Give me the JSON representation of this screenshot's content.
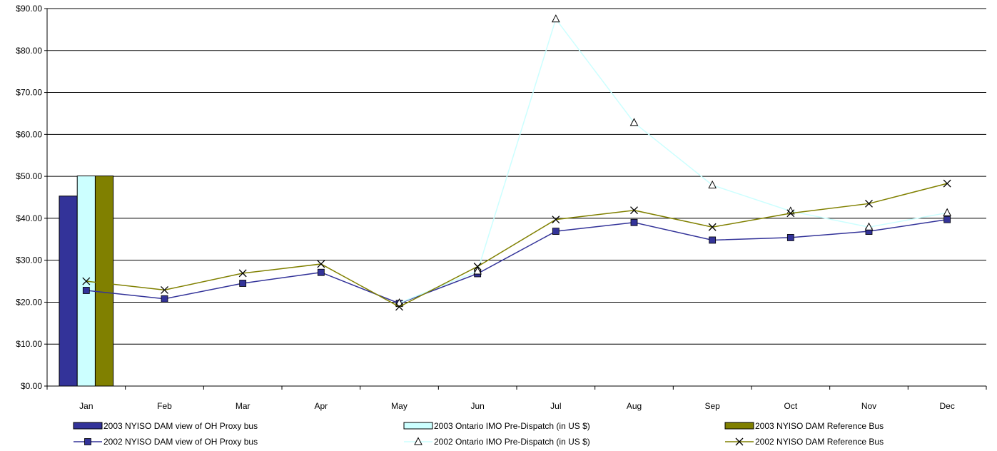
{
  "chart_data": {
    "type": "bar+line",
    "categories": [
      "Jan",
      "Feb",
      "Mar",
      "Apr",
      "May",
      "Jun",
      "Jul",
      "Aug",
      "Sep",
      "Oct",
      "Nov",
      "Dec"
    ],
    "ylim": [
      0,
      90
    ],
    "y_ticks": [
      "$0.00",
      "$10.00",
      "$20.00",
      "$30.00",
      "$40.00",
      "$50.00",
      "$60.00",
      "$70.00",
      "$80.00",
      "$90.00"
    ],
    "grid": true,
    "legend_position": "bottom",
    "bar_series": [
      {
        "name": "2003 NYISO DAM view of OH Proxy bus",
        "color": "#333399",
        "values": [
          45.3,
          null,
          null,
          null,
          null,
          null,
          null,
          null,
          null,
          null,
          null,
          null
        ]
      },
      {
        "name": "2003 Ontario IMO Pre-Dispatch (in US $)",
        "color": "#ccffff",
        "values": [
          50.1,
          null,
          null,
          null,
          null,
          null,
          null,
          null,
          null,
          null,
          null,
          null
        ]
      },
      {
        "name": "2003 NYISO DAM Reference Bus",
        "color": "#808000",
        "values": [
          50.1,
          null,
          null,
          null,
          null,
          null,
          null,
          null,
          null,
          null,
          null,
          null
        ]
      }
    ],
    "line_series": [
      {
        "name": "2002 NYISO DAM view of OH Proxy bus",
        "color": "#333399",
        "marker": "square",
        "values": [
          22.8,
          20.8,
          24.5,
          27.1,
          19.7,
          26.8,
          36.9,
          39.0,
          34.8,
          35.4,
          36.9,
          39.7
        ]
      },
      {
        "name": "2002 Ontario IMO Pre-Dispatch (in US $)",
        "color": "#ccffff",
        "marker": "triangle",
        "values": [
          null,
          null,
          null,
          null,
          19.8,
          27.4,
          87.5,
          62.8,
          47.9,
          41.7,
          37.9,
          41.3
        ]
      },
      {
        "name": "2002 NYISO DAM Reference Bus",
        "color": "#808000",
        "marker": "x",
        "values": [
          25.0,
          22.9,
          26.9,
          29.1,
          18.9,
          28.5,
          39.7,
          41.9,
          37.9,
          41.2,
          43.5,
          48.3
        ]
      }
    ]
  }
}
